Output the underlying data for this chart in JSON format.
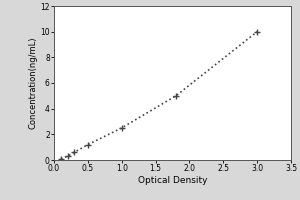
{
  "x_data": [
    0.1,
    0.2,
    0.3,
    0.5,
    1.0,
    1.8,
    3.0
  ],
  "y_data": [
    0.1,
    0.3,
    0.6,
    1.2,
    2.5,
    5.0,
    10.0
  ],
  "xlabel": "Optical Density",
  "ylabel": "Concentration(ng/mL)",
  "xlim": [
    0,
    3.5
  ],
  "ylim": [
    0,
    12
  ],
  "xticks": [
    0,
    0.5,
    1,
    1.5,
    2,
    2.5,
    3,
    3.5
  ],
  "yticks": [
    0,
    2,
    4,
    6,
    8,
    10,
    12
  ],
  "line_color": "#444444",
  "marker_color": "#444444",
  "line_style": "dotted",
  "marker_style": "+",
  "marker_size": 5,
  "marker_linewidth": 1.0,
  "line_width": 1.2,
  "xlabel_fontsize": 6.5,
  "ylabel_fontsize": 6.0,
  "tick_fontsize": 5.5,
  "plot_bg": "#ffffff",
  "figure_bg": "#d8d8d8"
}
